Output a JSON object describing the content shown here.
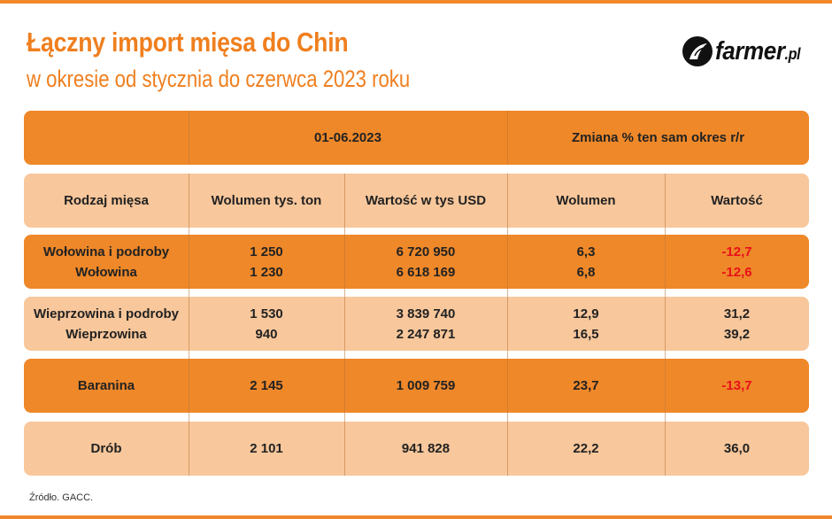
{
  "title": "Łączny import mięsa do Chin",
  "subtitle": "w okresie od stycznia do czerwca 2023 roku",
  "logo": {
    "text": "farmer",
    "domain": ".pl"
  },
  "header_top": {
    "period": "01-06.2023",
    "change": "Zmiana % ten sam okres r/r"
  },
  "columns": [
    "Rodzaj mięsa",
    "Wolumen tys. ton",
    "Wartość w tys USD",
    "Wolumen",
    "Wartość"
  ],
  "rows": [
    {
      "names": [
        "Wołowina i podroby",
        "Wołowina"
      ],
      "volume": [
        "1 250",
        "1 230"
      ],
      "value": [
        "6 720 950",
        "6 618 169"
      ],
      "vol_change": [
        "6,3",
        "6,8"
      ],
      "val_change": [
        "-12,7",
        "-12,6"
      ]
    },
    {
      "names": [
        "Wieprzowina i podroby",
        "Wieprzowina"
      ],
      "volume": [
        "1 530",
        "940"
      ],
      "value": [
        "3 839 740",
        "2 247 871"
      ],
      "vol_change": [
        "12,9",
        "16,5"
      ],
      "val_change": [
        "31,2",
        "39,2"
      ]
    },
    {
      "names": [
        "Baranina"
      ],
      "volume": [
        "2 145"
      ],
      "value": [
        "1 009 759"
      ],
      "vol_change": [
        "23,7"
      ],
      "val_change": [
        "-13,7"
      ]
    },
    {
      "names": [
        "Drób"
      ],
      "volume": [
        "2 101"
      ],
      "value": [
        "941 828"
      ],
      "vol_change": [
        "22,2"
      ],
      "val_change": [
        "36,0"
      ]
    }
  ],
  "source": "Źródło. GACC.",
  "colors": {
    "accent": "#ef8829",
    "light": "#f8c79b",
    "negative": "#e8101a",
    "title": "#ef7f1f"
  }
}
